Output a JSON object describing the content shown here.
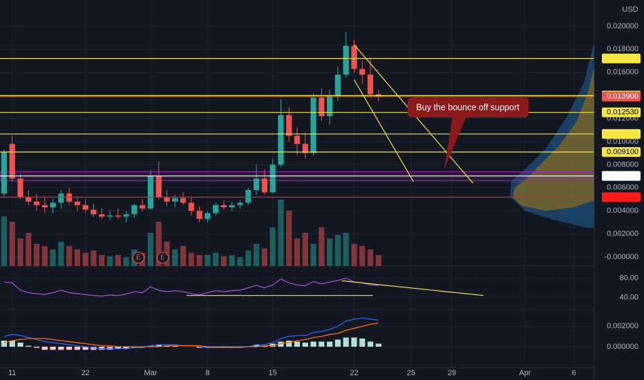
{
  "chart_data": [
    {
      "type": "candlestick",
      "currency": "USD",
      "xlim": [
        -0.5,
        72.5
      ],
      "xticks": [
        {
          "value": 1,
          "label": "11"
        },
        {
          "value": 10,
          "label": "22"
        },
        {
          "value": 18,
          "label": "Mar"
        },
        {
          "value": 25,
          "label": "8"
        },
        {
          "value": 33,
          "label": "15"
        },
        {
          "value": 43,
          "label": "22"
        },
        {
          "value": 50,
          "label": "25"
        },
        {
          "value": 55,
          "label": "29"
        },
        {
          "value": 64,
          "label": "Apr"
        },
        {
          "value": 70,
          "label": "6"
        }
      ],
      "ylim": [
        -0.00078,
        0.02227
      ],
      "yticks": [
        {
          "value": 0,
          "label": "-0.000000"
        },
        {
          "value": 0.002,
          "label": "0.002000"
        },
        {
          "value": 0.004,
          "label": "0.004000"
        },
        {
          "value": 0.006,
          "label": "0.006000"
        },
        {
          "value": 0.008,
          "label": "0.008000"
        },
        {
          "value": 0.01,
          "label": "0.010000"
        },
        {
          "value": 0.012,
          "label": "0.012000"
        },
        {
          "value": 0.014,
          "label": "0.014000"
        },
        {
          "value": 0.016,
          "label": "0.016000"
        },
        {
          "value": 0.018,
          "label": "0.018000"
        },
        {
          "value": 0.02,
          "label": "0.020000"
        }
      ],
      "up_color": "#26a69a",
      "down_color": "#ef5350",
      "open": [
        0.0055,
        0.0098,
        0.0068,
        0.0052,
        0.0048,
        0.0045,
        0.0043,
        0.0047,
        0.0055,
        0.0048,
        0.0045,
        0.0041,
        0.0037,
        0.0035,
        0.0036,
        0.0035,
        0.0037,
        0.0045,
        0.0042,
        0.007,
        0.0052,
        0.0048,
        0.0051,
        0.0047,
        0.004,
        0.0033,
        0.0038,
        0.0045,
        0.0043,
        0.0045,
        0.0047,
        0.0058,
        0.0068,
        0.0056,
        0.008,
        0.0123,
        0.0105,
        0.0098,
        0.009,
        0.0138,
        0.0122,
        0.014,
        0.0158,
        0.0183,
        0.0163,
        0.0158,
        0.0141
      ],
      "high": [
        0.0093,
        0.0105,
        0.0072,
        0.0058,
        0.0055,
        0.0052,
        0.005,
        0.0058,
        0.006,
        0.0052,
        0.005,
        0.0046,
        0.0042,
        0.004,
        0.0042,
        0.004,
        0.0046,
        0.005,
        0.0075,
        0.0083,
        0.0058,
        0.0054,
        0.0056,
        0.0052,
        0.0044,
        0.004,
        0.0047,
        0.0049,
        0.0048,
        0.0049,
        0.006,
        0.008,
        0.0076,
        0.0085,
        0.0137,
        0.013,
        0.0112,
        0.0108,
        0.0142,
        0.0146,
        0.0145,
        0.0165,
        0.0195,
        0.0188,
        0.017,
        0.0172,
        0.0145
      ],
      "low": [
        0.0052,
        0.0065,
        0.005,
        0.0045,
        0.004,
        0.0038,
        0.0038,
        0.0042,
        0.0045,
        0.004,
        0.0038,
        0.0035,
        0.0033,
        0.0032,
        0.0033,
        0.003,
        0.0034,
        0.004,
        0.0041,
        0.005,
        0.0044,
        0.0043,
        0.0045,
        0.0036,
        0.003,
        0.003,
        0.0036,
        0.0041,
        0.004,
        0.0042,
        0.0045,
        0.0054,
        0.0054,
        0.0055,
        0.0078,
        0.01,
        0.0088,
        0.0085,
        0.0088,
        0.0118,
        0.0115,
        0.0135,
        0.0155,
        0.016,
        0.015,
        0.0138,
        0.0135
      ],
      "close": [
        0.0091,
        0.0068,
        0.0052,
        0.0048,
        0.0045,
        0.0043,
        0.0047,
        0.0055,
        0.0048,
        0.0045,
        0.0041,
        0.0037,
        0.0035,
        0.0036,
        0.0035,
        0.0037,
        0.0045,
        0.0042,
        0.007,
        0.0052,
        0.0048,
        0.0051,
        0.0047,
        0.004,
        0.0033,
        0.0038,
        0.0045,
        0.0043,
        0.0045,
        0.0047,
        0.0058,
        0.0068,
        0.0056,
        0.008,
        0.0123,
        0.0105,
        0.0098,
        0.009,
        0.0138,
        0.0122,
        0.014,
        0.0158,
        0.0183,
        0.0163,
        0.0158,
        0.0141,
        0.0139
      ],
      "volume": [
        45,
        40,
        25,
        30,
        20,
        18,
        15,
        22,
        18,
        15,
        12,
        14,
        10,
        9,
        10,
        8,
        15,
        12,
        30,
        40,
        22,
        15,
        18,
        12,
        10,
        10,
        12,
        9,
        10,
        8,
        14,
        20,
        16,
        35,
        60,
        50,
        25,
        30,
        20,
        35,
        25,
        28,
        30,
        20,
        18,
        15,
        10
      ],
      "levels": [
        {
          "value": 0.017206,
          "color": "#f5e642"
        },
        {
          "value": 0.013985,
          "color": "#f5e642"
        },
        {
          "value": 0.0139,
          "label": "0.013900",
          "color": "#ef5350"
        },
        {
          "value": 0.01253,
          "label": "0.012530",
          "color": "#f5e642"
        },
        {
          "value": 0.010659,
          "color": "#f5e642"
        },
        {
          "value": 0.0091,
          "label": "0.009100",
          "color": "#f5e642"
        },
        {
          "value": 0.007022,
          "color": "#ffffff"
        },
        {
          "value": 0.005184,
          "color": "#ff1a1a"
        }
      ],
      "zone": [
        0.0066,
        0.0074
      ],
      "trendlines": [
        {
          "x": [
            43,
            57.6
          ],
          "y": [
            0.0184,
            0.0064
          ]
        },
        {
          "x": [
            43,
            50.3
          ],
          "y": [
            0.01537,
            0.00652
          ]
        }
      ],
      "events": [
        {
          "x": 16.5,
          "label": "E"
        },
        {
          "x": 19.5,
          "label": "E"
        }
      ],
      "annotation": "Buy the bounce off support"
    },
    {
      "type": "line",
      "ylim": [
        16.6,
        100.7
      ],
      "yticks": [
        {
          "value": 80,
          "label": "80.00"
        },
        {
          "value": 40,
          "label": "40.00"
        }
      ],
      "series": [
        {
          "color": "#9c4fd6",
          "values": [
            72,
            70,
            55,
            50,
            48,
            46,
            50,
            55,
            50,
            48,
            46,
            44,
            43,
            45,
            44,
            47,
            52,
            50,
            62,
            55,
            52,
            54,
            52,
            48,
            45,
            50,
            54,
            52,
            54,
            55,
            60,
            65,
            60,
            66,
            78,
            70,
            66,
            64,
            73,
            68,
            72,
            75,
            80,
            72,
            70,
            66,
            65
          ]
        }
      ],
      "trendlines": [
        {
          "x": [
            41.5,
            58.9
          ],
          "y": [
            74.5,
            44.1
          ]
        },
        {
          "x": [
            22.4,
            45.3
          ],
          "y": [
            44.1,
            44.1
          ]
        }
      ]
    },
    {
      "type": "line",
      "ylim": [
        -0.0019,
        0.0035
      ],
      "yticks": [
        {
          "value": 0.002,
          "label": "0.002000"
        },
        {
          "value": 0,
          "label": "0.000000"
        }
      ],
      "series": [
        {
          "type": "bar",
          "color": "#b2dfdb",
          "negative_color": "#ffcdd2",
          "values": [
            0.0006,
            0.0006,
            0.0004,
            0.0001,
            -0.0001,
            -0.0003,
            -0.0003,
            -0.0003,
            -0.0003,
            -0.0003,
            -0.0003,
            -0.0003,
            -0.0003,
            -0.0003,
            -0.0002,
            -0.0002,
            -0.0001,
            -0.0001,
            0.0001,
            0.0002,
            0.0001,
            0.0001,
            0,
            0,
            -0.0001,
            -0.0001,
            -0.0001,
            -0.0001,
            -0.0001,
            -0.0001,
            0,
            0.0002,
            0.0001,
            0.0003,
            0.0005,
            0.0006,
            0.0005,
            0.0004,
            0.0005,
            0.0005,
            0.0005,
            0.0007,
            0.0009,
            0.0009,
            0.0008,
            0.0005,
            0.0003
          ]
        },
        {
          "color": "#2962ff",
          "values": [
            0.001,
            0.0012,
            0.0011,
            0.0009,
            0.0007,
            0.0005,
            0.0004,
            0.0003,
            0.0002,
            0.0001,
            0,
            -0.0001,
            -0.0002,
            -0.0002,
            -0.0002,
            -0.0002,
            -0.0001,
            -0.0001,
            0.0001,
            0.0002,
            0.0002,
            0.0002,
            0.0001,
            0.0001,
            0,
            -0.0001,
            -0.0001,
            -0.0001,
            -0.0001,
            -0.0001,
            0,
            0.0002,
            0.0002,
            0.0004,
            0.0008,
            0.001,
            0.0011,
            0.0011,
            0.0014,
            0.0015,
            0.0017,
            0.002,
            0.0025,
            0.0027,
            0.0028,
            0.0027,
            0.0026
          ]
        },
        {
          "color": "#ff6d00",
          "values": [
            0.0004,
            0.0006,
            0.0007,
            0.0008,
            0.0008,
            0.0008,
            0.0007,
            0.0006,
            0.0005,
            0.0004,
            0.0003,
            0.0002,
            0.0001,
            0.0001,
            0,
            0,
            0,
            0,
            0,
            0,
            0.0001,
            0.0001,
            0.0001,
            0.0001,
            0.0001,
            0,
            0,
            0,
            0,
            0,
            0,
            0,
            0.0001,
            0.0001,
            0.0003,
            0.0004,
            0.0006,
            0.0007,
            0.0009,
            0.001,
            0.0012,
            0.0013,
            0.0016,
            0.0018,
            0.002,
            0.0022,
            0.0023
          ]
        }
      ]
    }
  ]
}
